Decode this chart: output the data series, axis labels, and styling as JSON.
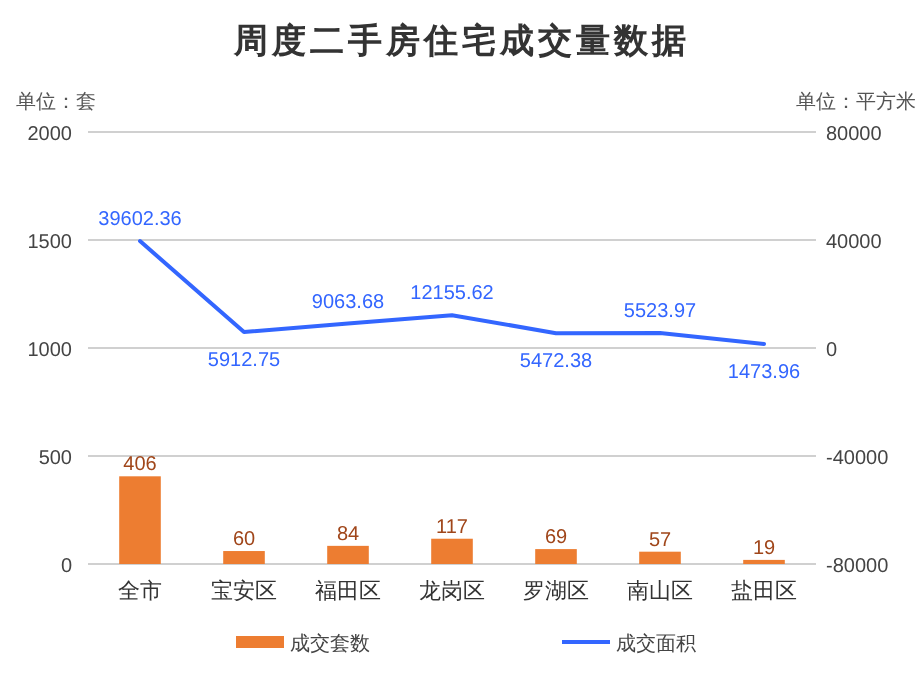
{
  "chart_data": {
    "type": "bar",
    "title": "周度二手房住宅成交量数据",
    "ylabel": "单位：套",
    "y2label": "单位：平方米",
    "categories": [
      "全市",
      "宝安区",
      "福田区",
      "龙岗区",
      "罗湖区",
      "南山区",
      "盐田区"
    ],
    "series": [
      {
        "name": "成交套数",
        "color": "#ed7d31",
        "values": [
          406,
          60,
          84,
          117,
          69,
          57,
          19
        ]
      },
      {
        "name": "成交面积",
        "type": "line",
        "axis": "y2",
        "color": "#3366ff",
        "values": [
          39602.36,
          5912.75,
          9063.68,
          12155.62,
          5472.38,
          5523.97,
          1473.96
        ]
      }
    ],
    "ylim": [
      0,
      2000
    ],
    "yticks": [
      0,
      500,
      1000,
      1500,
      2000
    ],
    "y2lim": [
      -80000,
      80000
    ],
    "y2ticks": [
      -80000,
      -40000,
      0,
      40000,
      80000
    ],
    "grid": "y",
    "legend": "bottom",
    "data_labels": true,
    "marker": "none"
  }
}
